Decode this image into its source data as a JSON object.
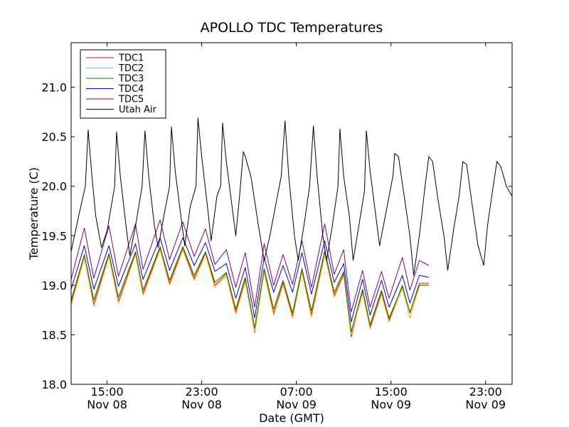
{
  "chart_data": {
    "type": "line",
    "title": "APOLLO TDC Temperatures",
    "xlabel": "Date (GMT)",
    "ylabel": "Temperature (C)",
    "xlim_hours": [
      10.1,
      33.4
    ],
    "ylim": [
      18.0,
      21.45
    ],
    "yticks": [
      18.0,
      18.5,
      19.0,
      19.5,
      20.0,
      20.5,
      21.0
    ],
    "ytick_labels": [
      "18.0",
      "18.5",
      "19.0",
      "19.5",
      "20.0",
      "20.5",
      "21.0"
    ],
    "xticks": [
      {
        "hours": 12,
        "line1": "15:00",
        "line2": "Nov 08"
      },
      {
        "hours": 17,
        "line1": "23:00",
        "line2": "Nov 08"
      },
      {
        "hours": 22,
        "line1": "07:00",
        "line2": "Nov 09"
      },
      {
        "hours": 27,
        "line1": "15:00",
        "line2": "Nov 09"
      },
      {
        "hours": 32,
        "line1": "23:00",
        "line2": "Nov 09"
      }
    ],
    "legend_position": "top-left",
    "series": [
      {
        "name": "TDC1",
        "color": "#ff0000",
        "points": [
          [
            10.1,
            18.82
          ],
          [
            10.8,
            19.3
          ],
          [
            11.3,
            18.81
          ],
          [
            12.1,
            19.31
          ],
          [
            12.6,
            18.84
          ],
          [
            13.5,
            19.33
          ],
          [
            13.9,
            18.92
          ],
          [
            14.8,
            19.38
          ],
          [
            15.3,
            19.02
          ],
          [
            16.0,
            19.38
          ],
          [
            16.6,
            19.07
          ],
          [
            17.2,
            19.33
          ],
          [
            17.7,
            19.0
          ],
          [
            18.3,
            19.12
          ],
          [
            18.8,
            18.73
          ],
          [
            19.3,
            19.06
          ],
          [
            19.8,
            18.52
          ],
          [
            20.3,
            19.15
          ],
          [
            20.8,
            18.72
          ],
          [
            21.3,
            19.03
          ],
          [
            21.8,
            18.69
          ],
          [
            22.3,
            19.15
          ],
          [
            22.8,
            18.7
          ],
          [
            23.5,
            19.33
          ],
          [
            24.0,
            18.9
          ],
          [
            24.5,
            19.12
          ],
          [
            24.9,
            18.48
          ],
          [
            25.5,
            18.94
          ],
          [
            25.9,
            18.58
          ],
          [
            26.5,
            18.93
          ],
          [
            26.9,
            18.65
          ],
          [
            27.6,
            19.0
          ],
          [
            28.0,
            18.72
          ],
          [
            28.5,
            19.02
          ],
          [
            29.0,
            19.02
          ]
        ]
      },
      {
        "name": "TDC2",
        "color": "#ffa500",
        "points": [
          [
            10.1,
            18.8
          ],
          [
            10.8,
            19.28
          ],
          [
            11.3,
            18.79
          ],
          [
            12.1,
            19.29
          ],
          [
            12.6,
            18.82
          ],
          [
            13.5,
            19.31
          ],
          [
            13.9,
            18.9
          ],
          [
            14.8,
            19.36
          ],
          [
            15.3,
            19.0
          ],
          [
            16.0,
            19.36
          ],
          [
            16.6,
            19.05
          ],
          [
            17.2,
            19.31
          ],
          [
            17.7,
            18.98
          ],
          [
            18.3,
            19.1
          ],
          [
            18.8,
            18.71
          ],
          [
            19.3,
            19.04
          ],
          [
            19.8,
            18.53
          ],
          [
            20.3,
            19.13
          ],
          [
            20.8,
            18.7
          ],
          [
            21.3,
            19.01
          ],
          [
            21.8,
            18.67
          ],
          [
            22.3,
            19.13
          ],
          [
            22.8,
            18.68
          ],
          [
            23.5,
            19.31
          ],
          [
            24.0,
            18.88
          ],
          [
            24.5,
            19.1
          ],
          [
            24.9,
            18.5
          ],
          [
            25.5,
            18.92
          ],
          [
            25.9,
            18.56
          ],
          [
            26.5,
            18.91
          ],
          [
            26.9,
            18.63
          ],
          [
            27.6,
            18.97
          ],
          [
            28.0,
            18.67
          ],
          [
            28.5,
            19.0
          ],
          [
            29.0,
            19.0
          ]
        ]
      },
      {
        "name": "TDC3",
        "color": "#008000",
        "points": [
          [
            10.1,
            18.85
          ],
          [
            10.8,
            19.31
          ],
          [
            11.3,
            18.85
          ],
          [
            12.1,
            19.32
          ],
          [
            12.6,
            18.88
          ],
          [
            13.5,
            19.34
          ],
          [
            13.9,
            18.95
          ],
          [
            14.8,
            19.39
          ],
          [
            15.3,
            19.05
          ],
          [
            16.0,
            19.39
          ],
          [
            16.6,
            19.1
          ],
          [
            17.2,
            19.34
          ],
          [
            17.7,
            19.03
          ],
          [
            18.3,
            19.13
          ],
          [
            18.8,
            18.76
          ],
          [
            19.3,
            19.08
          ],
          [
            19.8,
            18.57
          ],
          [
            20.3,
            19.17
          ],
          [
            20.8,
            18.76
          ],
          [
            21.3,
            19.05
          ],
          [
            21.8,
            18.72
          ],
          [
            22.3,
            19.17
          ],
          [
            22.8,
            18.74
          ],
          [
            23.5,
            19.35
          ],
          [
            24.0,
            18.93
          ],
          [
            24.5,
            19.14
          ],
          [
            24.9,
            18.53
          ],
          [
            25.5,
            18.96
          ],
          [
            25.9,
            18.6
          ],
          [
            26.5,
            18.95
          ],
          [
            26.9,
            18.67
          ],
          [
            27.6,
            18.99
          ],
          [
            28.0,
            18.73
          ],
          [
            28.5,
            19.0
          ],
          [
            29.0,
            19.0
          ]
        ]
      },
      {
        "name": "TDC4",
        "color": "#0000ff",
        "points": [
          [
            10.1,
            18.96
          ],
          [
            10.8,
            19.4
          ],
          [
            11.3,
            18.96
          ],
          [
            12.1,
            19.4
          ],
          [
            12.6,
            18.99
          ],
          [
            13.5,
            19.42
          ],
          [
            13.9,
            19.06
          ],
          [
            14.8,
            19.48
          ],
          [
            15.3,
            19.15
          ],
          [
            16.0,
            19.48
          ],
          [
            16.6,
            19.2
          ],
          [
            17.2,
            19.43
          ],
          [
            17.7,
            19.14
          ],
          [
            18.3,
            19.22
          ],
          [
            18.8,
            18.87
          ],
          [
            19.3,
            19.18
          ],
          [
            19.8,
            18.67
          ],
          [
            20.3,
            19.28
          ],
          [
            20.8,
            18.93
          ],
          [
            21.3,
            19.2
          ],
          [
            21.8,
            18.93
          ],
          [
            22.3,
            19.33
          ],
          [
            22.8,
            18.91
          ],
          [
            23.5,
            19.45
          ],
          [
            24.0,
            19.03
          ],
          [
            24.5,
            19.22
          ],
          [
            24.9,
            18.63
          ],
          [
            25.5,
            19.06
          ],
          [
            25.9,
            18.7
          ],
          [
            26.5,
            19.05
          ],
          [
            26.9,
            18.78
          ],
          [
            27.6,
            19.1
          ],
          [
            28.0,
            18.82
          ],
          [
            28.5,
            19.1
          ],
          [
            29.0,
            19.08
          ]
        ]
      },
      {
        "name": "TDC5",
        "color": "#800080",
        "points": [
          [
            10.1,
            19.06
          ],
          [
            10.8,
            19.58
          ],
          [
            11.3,
            19.07
          ],
          [
            12.1,
            19.6
          ],
          [
            12.6,
            19.09
          ],
          [
            13.5,
            19.62
          ],
          [
            13.9,
            19.16
          ],
          [
            14.8,
            19.66
          ],
          [
            15.3,
            19.26
          ],
          [
            16.0,
            19.64
          ],
          [
            16.6,
            19.29
          ],
          [
            17.2,
            19.57
          ],
          [
            17.7,
            19.21
          ],
          [
            18.3,
            19.36
          ],
          [
            18.8,
            18.98
          ],
          [
            19.3,
            19.33
          ],
          [
            19.8,
            18.78
          ],
          [
            20.3,
            19.42
          ],
          [
            20.8,
            19.0
          ],
          [
            21.3,
            19.31
          ],
          [
            21.8,
            19.01
          ],
          [
            22.3,
            19.45
          ],
          [
            22.8,
            18.98
          ],
          [
            23.5,
            19.62
          ],
          [
            24.0,
            19.11
          ],
          [
            24.5,
            19.36
          ],
          [
            24.9,
            18.73
          ],
          [
            25.5,
            19.15
          ],
          [
            25.9,
            18.78
          ],
          [
            26.5,
            19.14
          ],
          [
            26.9,
            18.87
          ],
          [
            27.6,
            19.28
          ],
          [
            28.0,
            18.95
          ],
          [
            28.5,
            19.25
          ],
          [
            29.0,
            19.2
          ]
        ]
      },
      {
        "name": "Utah Air",
        "color": "#000000",
        "points": [
          [
            10.1,
            19.34
          ],
          [
            10.5,
            19.7
          ],
          [
            10.85,
            20.0
          ],
          [
            11.0,
            20.57
          ],
          [
            11.2,
            20.1
          ],
          [
            11.4,
            19.7
          ],
          [
            11.7,
            19.38
          ],
          [
            12.0,
            19.55
          ],
          [
            12.4,
            20.0
          ],
          [
            12.5,
            20.55
          ],
          [
            12.7,
            20.1
          ],
          [
            13.0,
            19.6
          ],
          [
            13.2,
            19.3
          ],
          [
            13.5,
            19.6
          ],
          [
            13.85,
            20.0
          ],
          [
            14.0,
            20.56
          ],
          [
            14.2,
            20.1
          ],
          [
            14.5,
            19.6
          ],
          [
            14.7,
            19.38
          ],
          [
            15.0,
            19.7
          ],
          [
            15.3,
            20.0
          ],
          [
            15.4,
            20.6
          ],
          [
            15.6,
            20.15
          ],
          [
            15.9,
            19.7
          ],
          [
            16.1,
            19.4
          ],
          [
            16.4,
            19.8
          ],
          [
            16.7,
            20.0
          ],
          [
            16.8,
            20.69
          ],
          [
            17.0,
            20.3
          ],
          [
            17.3,
            19.8
          ],
          [
            17.5,
            19.45
          ],
          [
            17.8,
            19.9
          ],
          [
            18.0,
            20.0
          ],
          [
            18.1,
            20.64
          ],
          [
            18.3,
            20.25
          ],
          [
            18.6,
            19.8
          ],
          [
            18.8,
            19.5
          ],
          [
            19.0,
            19.9
          ],
          [
            19.2,
            20.35
          ],
          [
            19.3,
            20.3
          ],
          [
            19.6,
            20.1
          ],
          [
            20.0,
            19.6
          ],
          [
            20.3,
            19.25
          ],
          [
            20.6,
            19.5
          ],
          [
            21.0,
            19.9
          ],
          [
            21.2,
            20.1
          ],
          [
            21.4,
            20.66
          ],
          [
            21.6,
            20.1
          ],
          [
            21.9,
            19.5
          ],
          [
            22.1,
            19.25
          ],
          [
            22.4,
            19.6
          ],
          [
            22.7,
            20.0
          ],
          [
            22.9,
            20.61
          ],
          [
            23.1,
            20.1
          ],
          [
            23.4,
            19.5
          ],
          [
            23.6,
            19.25
          ],
          [
            23.9,
            19.6
          ],
          [
            24.2,
            20.0
          ],
          [
            24.3,
            20.58
          ],
          [
            24.5,
            20.1
          ],
          [
            24.8,
            19.7
          ],
          [
            25.0,
            19.25
          ],
          [
            25.3,
            19.6
          ],
          [
            25.6,
            19.95
          ],
          [
            25.7,
            20.56
          ],
          [
            25.9,
            20.15
          ],
          [
            26.2,
            19.7
          ],
          [
            26.4,
            19.4
          ],
          [
            26.8,
            19.8
          ],
          [
            27.1,
            20.1
          ],
          [
            27.2,
            20.33
          ],
          [
            27.4,
            20.3
          ],
          [
            27.7,
            19.9
          ],
          [
            28.0,
            19.5
          ],
          [
            28.2,
            19.1
          ],
          [
            28.5,
            19.5
          ],
          [
            28.8,
            20.0
          ],
          [
            29.0,
            20.3
          ],
          [
            29.2,
            20.25
          ],
          [
            29.5,
            19.85
          ],
          [
            29.8,
            19.5
          ],
          [
            30.0,
            19.15
          ],
          [
            30.3,
            19.55
          ],
          [
            30.6,
            19.9
          ],
          [
            30.8,
            20.25
          ],
          [
            31.0,
            20.22
          ],
          [
            31.3,
            19.8
          ],
          [
            31.6,
            19.4
          ],
          [
            31.9,
            19.2
          ],
          [
            32.1,
            19.6
          ],
          [
            32.4,
            20.0
          ],
          [
            32.6,
            20.25
          ],
          [
            32.8,
            20.2
          ],
          [
            33.1,
            20.0
          ],
          [
            33.4,
            19.9
          ]
        ]
      }
    ]
  }
}
